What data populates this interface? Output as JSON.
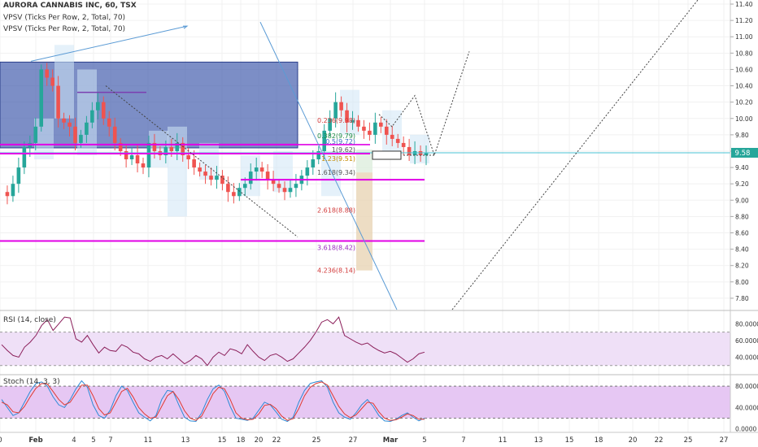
{
  "chart_title": "AURORA CANNABIS INC, 60, TSX",
  "indicators": [
    "VPSV (Ticks Per Row, 2, Total, 70)",
    "VPSV (Ticks Per Row, 2, Total, 70)"
  ],
  "colors": {
    "up": "#26a69a",
    "down": "#ef5350",
    "resistance_zone": "#4a62b0",
    "magenta_line": "#e100e6",
    "price_line": "#48c3d4",
    "pivot": "#555555",
    "rsi_line": "#8b1f5a",
    "rsi_band": "#efe0f7",
    "stoch_k": "#2d8bd6",
    "stoch_d": "#e03a32",
    "stoch_band": "#e6c7f3",
    "fib_zone": "#e8d5b5"
  },
  "chart_data": [
    {
      "type": "candlestick",
      "xlabels": [
        "0",
        "Feb",
        "4",
        "5",
        "7",
        "11",
        "13",
        "15",
        "18",
        "20",
        "22",
        "25",
        "27",
        "Mar",
        "5",
        "7",
        "11",
        "13",
        "15",
        "18",
        "20",
        "22",
        "25",
        "27"
      ],
      "yticks": [
        7.8,
        8.0,
        8.2,
        8.4,
        8.6,
        8.8,
        9.0,
        9.2,
        9.4,
        9.6,
        9.8,
        10.0,
        10.2,
        10.4,
        10.6,
        10.8,
        11.0,
        11.2,
        11.4
      ],
      "ylim": [
        7.66,
        11.45
      ],
      "last_price": "9.58",
      "horizontal_lines": [
        9.58,
        9.68,
        9.25,
        8.5
      ],
      "resistance_zone": {
        "from": 9.64,
        "to": 10.69
      },
      "fib_labels": [
        {
          "text": "0.236(9.98)",
          "value": 9.98
        },
        {
          "text": "0.382(9.79)",
          "value": 9.79
        },
        {
          "text": "0.5(9.72)",
          "value": 9.72
        },
        {
          "text": "1(9.62)",
          "value": 9.62
        },
        {
          "text": "1.23(9.51)",
          "value": 9.51
        },
        {
          "text": "1.618(9.34)",
          "value": 9.34
        },
        {
          "text": "2.618(8.88)",
          "value": 8.88
        },
        {
          "text": "3.618(8.42)",
          "value": 8.42
        },
        {
          "text": "4.236(8.14)",
          "value": 8.14
        }
      ],
      "price_path": [
        9.1,
        9.05,
        9.2,
        9.4,
        9.65,
        9.7,
        9.9,
        10.6,
        10.5,
        10.4,
        10.0,
        9.95,
        9.9,
        9.7,
        9.8,
        9.95,
        10.1,
        10.2,
        10.0,
        9.9,
        9.7,
        9.6,
        9.5,
        9.55,
        9.45,
        9.4,
        9.7,
        9.6,
        9.55,
        9.65,
        9.6,
        9.7,
        9.55,
        9.5,
        9.4,
        9.35,
        9.3,
        9.25,
        9.3,
        9.2,
        9.1,
        9.05,
        9.15,
        9.2,
        9.35,
        9.4,
        9.35,
        9.25,
        9.2,
        9.15,
        9.1,
        9.15,
        9.2,
        9.3,
        9.4,
        9.5,
        9.6,
        9.85,
        10.0,
        10.2,
        10.1,
        9.95,
        9.98,
        9.9,
        9.85,
        9.8,
        9.95,
        9.9,
        9.8,
        9.75,
        9.7,
        9.65,
        9.55,
        9.6,
        9.55,
        9.58
      ]
    },
    {
      "type": "line",
      "title": "RSI (14, close)",
      "yticks": [
        40.0,
        60.0,
        80.0
      ],
      "band": [
        30,
        70
      ],
      "ylim": [
        20,
        95
      ],
      "values": [
        55,
        48,
        42,
        40,
        52,
        58,
        66,
        78,
        85,
        72,
        80,
        88,
        87,
        62,
        58,
        66,
        55,
        45,
        52,
        48,
        47,
        55,
        52,
        46,
        44,
        38,
        35,
        40,
        42,
        38,
        44,
        38,
        32,
        36,
        42,
        38,
        30,
        40,
        46,
        42,
        50,
        48,
        44,
        55,
        47,
        40,
        36,
        42,
        44,
        40,
        35,
        38,
        45,
        52,
        60,
        70,
        82,
        85,
        80,
        88,
        66,
        62,
        58,
        55,
        57,
        52,
        48,
        45,
        47,
        44,
        39,
        34,
        38,
        44,
        46
      ]
    },
    {
      "type": "line",
      "title": "Stoch (14, 3, 3)",
      "yticks": [
        0.0,
        40.0,
        80.0
      ],
      "band": [
        20,
        80
      ],
      "ylim": [
        -5,
        100
      ],
      "series": [
        {
          "values": [
            55,
            40,
            25,
            30,
            50,
            70,
            85,
            88,
            80,
            60,
            45,
            40,
            55,
            75,
            90,
            78,
            45,
            25,
            20,
            35,
            62,
            80,
            72,
            50,
            30,
            22,
            15,
            25,
            55,
            72,
            70,
            45,
            22,
            15,
            14,
            30,
            55,
            75,
            82,
            70,
            42,
            20,
            18,
            16,
            20,
            35,
            50,
            45,
            32,
            18,
            14,
            22,
            50,
            72,
            85,
            88,
            90,
            78,
            50,
            30,
            22,
            18,
            30,
            45,
            55,
            42,
            25,
            15,
            14,
            18,
            25,
            30,
            22,
            15,
            20
          ]
        },
        {
          "values": [
            50,
            45,
            32,
            30,
            42,
            60,
            76,
            85,
            84,
            70,
            55,
            45,
            50,
            66,
            82,
            82,
            62,
            38,
            26,
            30,
            50,
            70,
            76,
            60,
            40,
            28,
            20,
            22,
            42,
            62,
            70,
            55,
            34,
            20,
            16,
            24,
            44,
            66,
            78,
            75,
            55,
            30,
            20,
            17,
            18,
            28,
            44,
            46,
            38,
            24,
            16,
            19,
            38,
            62,
            78,
            85,
            88,
            82,
            62,
            42,
            28,
            21,
            26,
            38,
            50,
            48,
            32,
            20,
            16,
            17,
            22,
            28,
            25,
            18,
            18
          ]
        }
      ]
    }
  ]
}
